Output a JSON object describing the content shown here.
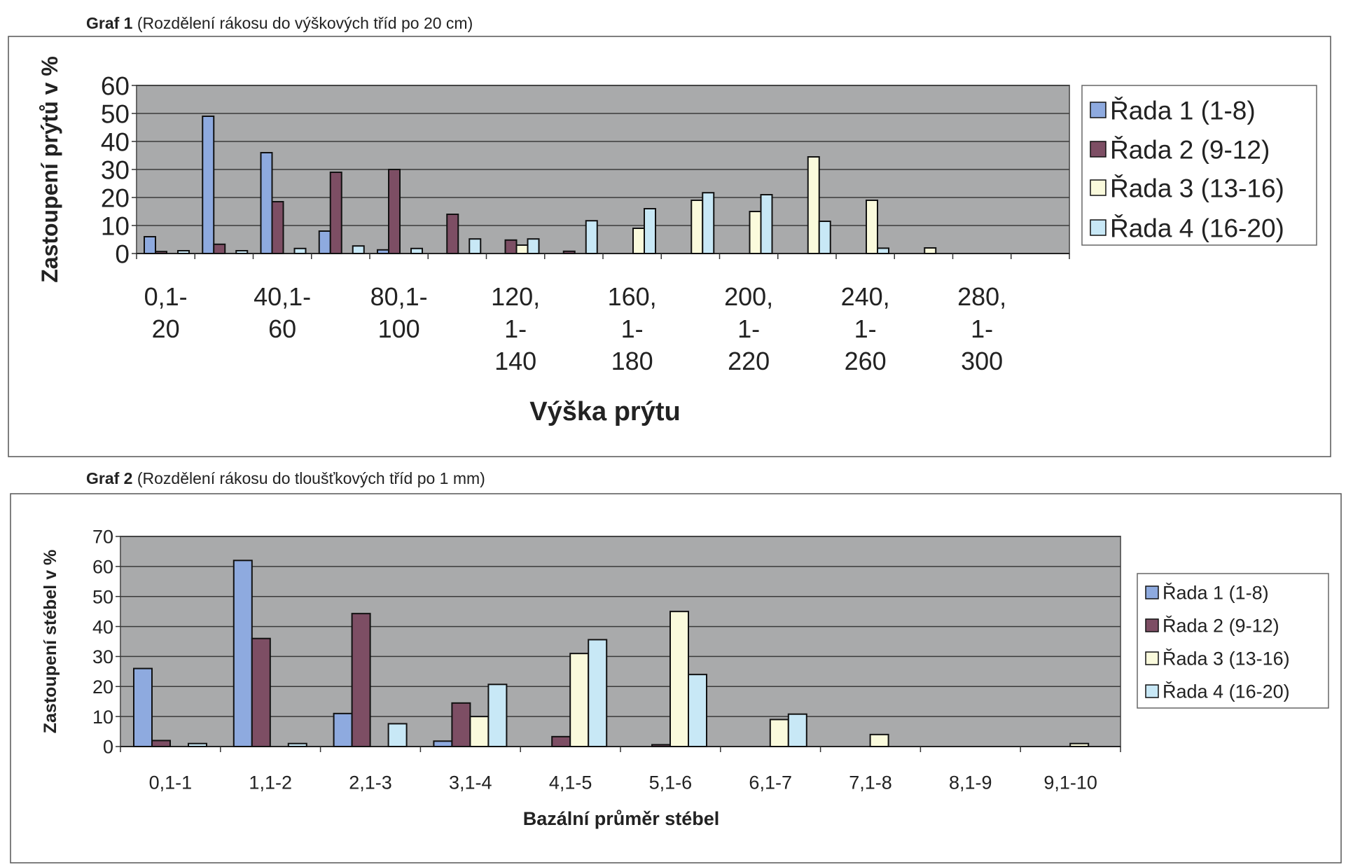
{
  "colors": {
    "series": [
      "#8eaadf",
      "#7d4e64",
      "#fafadc",
      "#c8e8f6"
    ],
    "plot_background": "#a9aaab",
    "gridline": "#3a3a3a"
  },
  "chart_data": [
    {
      "type": "bar",
      "caption_bold": "Graf 1",
      "caption": "(Rozdělení rákosu do výškových tříd po 20 cm)",
      "xlabel": "Výška prýtu",
      "ylabel": "Zastoupení prýtů v %",
      "ylim": [
        0,
        60
      ],
      "yticks": [
        "0",
        "10",
        "20",
        "30",
        "40",
        "50",
        "60"
      ],
      "grid": true,
      "legend": "right",
      "categories": [
        [
          "0,1-",
          "20"
        ],
        [],
        [
          "40,1-",
          "60"
        ],
        [],
        [
          "80,1-",
          "100"
        ],
        [],
        [
          "120,",
          "1-",
          "140"
        ],
        [],
        [
          "160,",
          "1-",
          "180"
        ],
        [],
        [
          "200,",
          "1-",
          "220"
        ],
        [],
        [
          "240,",
          "1-",
          "260"
        ],
        [],
        [
          "280,",
          "1-",
          "300"
        ],
        []
      ],
      "series": [
        {
          "name": "Řada 1 (1-8)",
          "values": [
            6,
            49,
            36,
            8,
            1.3,
            0,
            0,
            0,
            0,
            0,
            0,
            0,
            0,
            0,
            0,
            0
          ]
        },
        {
          "name": "Řada 2 (9-12)",
          "values": [
            0.7,
            3.3,
            18.5,
            29,
            30,
            14,
            4.8,
            0.8,
            0,
            0,
            0,
            0,
            0,
            0,
            0,
            0
          ]
        },
        {
          "name": "Řada 3 (13-16)",
          "values": [
            0,
            0,
            0,
            0,
            0,
            0,
            3,
            0,
            9,
            19,
            15,
            34.5,
            19,
            2,
            0,
            0
          ]
        },
        {
          "name": "Řada 4 (16-20)",
          "values": [
            1,
            1,
            1.8,
            2.7,
            1.8,
            5.2,
            5.2,
            11.7,
            16,
            21.7,
            21,
            11.5,
            1.9,
            0,
            0,
            0
          ]
        }
      ]
    },
    {
      "type": "bar",
      "caption_bold": "Graf 2",
      "caption": "(Rozdělení rákosu do tloušťkových tříd po 1 mm)",
      "xlabel": "Bazální průměr stébel",
      "ylabel": "Zastoupení stébel v %",
      "ylim": [
        0,
        70
      ],
      "yticks": [
        "0",
        "10",
        "20",
        "30",
        "40",
        "50",
        "60",
        "70"
      ],
      "grid": true,
      "legend": "right",
      "categories": [
        [
          "0,1-1"
        ],
        [
          "1,1-2"
        ],
        [
          "2,1-3"
        ],
        [
          "3,1-4"
        ],
        [
          "4,1-5"
        ],
        [
          "5,1-6"
        ],
        [
          "6,1-7"
        ],
        [
          "7,1-8"
        ],
        [
          "8,1-9"
        ],
        [
          "9,1-10"
        ]
      ],
      "series": [
        {
          "name": "Řada 1 (1-8)",
          "values": [
            26,
            62,
            11,
            1.8,
            0,
            0,
            0,
            0,
            0,
            0
          ]
        },
        {
          "name": "Řada 2 (9-12)",
          "values": [
            2,
            36,
            44.3,
            14.5,
            3.3,
            0.6,
            0,
            0,
            0,
            0
          ]
        },
        {
          "name": "Řada 3 (13-16)",
          "values": [
            0,
            0,
            0,
            10,
            31,
            45,
            9,
            4,
            0,
            1
          ]
        },
        {
          "name": "Řada 4 (16-20)",
          "values": [
            1,
            1,
            7.6,
            20.7,
            35.6,
            24,
            10.8,
            0,
            0,
            0
          ]
        }
      ]
    }
  ]
}
